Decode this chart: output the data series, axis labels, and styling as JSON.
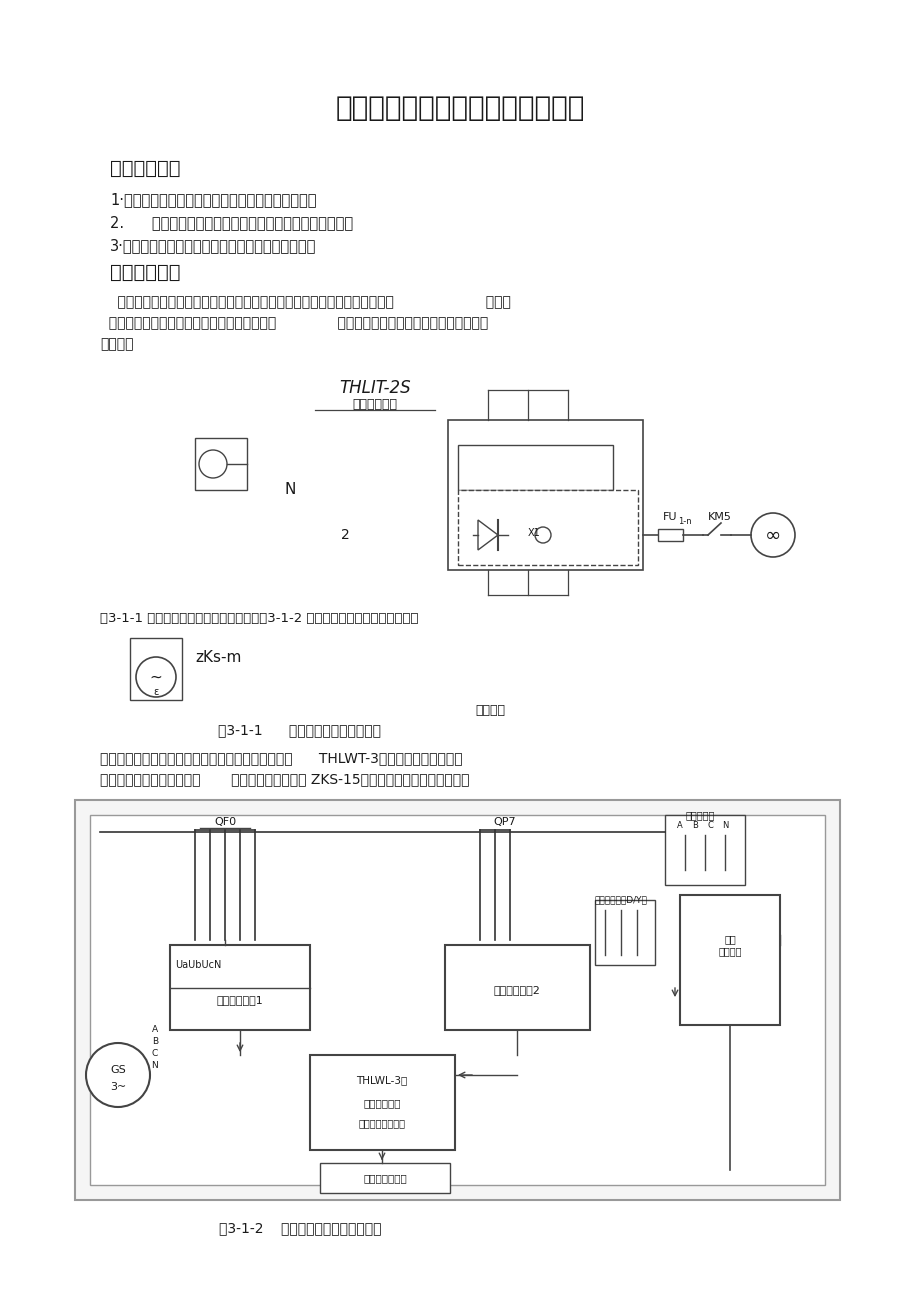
{
  "title": "实验一发电机组的起动与运转实验",
  "section1": "一、头验目的",
  "item1": "1·了解微机调速装置的工作原理和掌握其操作方法。",
  "item2": "2.      熟悉发电机组中原动机（直流电动机）的基本特性。",
  "item3": "3·掌握发电机组起励建压，并网，解列和停机的操作",
  "section2": "二、原理说明",
  "para1_line1": "    在本实验平台中，原动机采用直流电动机模拟工业现场的汽轮机或水轮机，                     调速系",
  "para1_line2": "  统用于调整原动机的转速和输出的有功功率，              励磁系统用于调整发电机电压和输出的无",
  "para1_line3": "功功率。",
  "diagram1_label": "THLIT-2S",
  "diagram1_sublabel": "曲机调速製柜",
  "circuit_note": "N",
  "fu_label": "FU1-n",
  "km5_label": "KM5",
  "fig_caption1": "图3-1-1 为调速系统的原理结构示意图，图3-1-2 为励磁系统的原理结构示意图。",
  "zksm_label": "zKs-m",
  "tuning_label": "调管电路",
  "fig_caption2": "图3-1-1      调速系统原理结构示意图",
  "para2_line1": "装于原动机上的编码器将转速信号以脉冲的形式送入      THLWT-3型微机调速装置，该装",
  "para2_line2": "置将转速信号转换成电压，       和给定电压一起送入 ZKS-15型直流电机调速装置，采用双",
  "fig3_caption": "图3-1-2    励磁系统的原理结构示意图",
  "bg_color": "#ffffff",
  "text_color": "#1a1a1a",
  "line_color": "#444444",
  "gray_color": "#888888"
}
